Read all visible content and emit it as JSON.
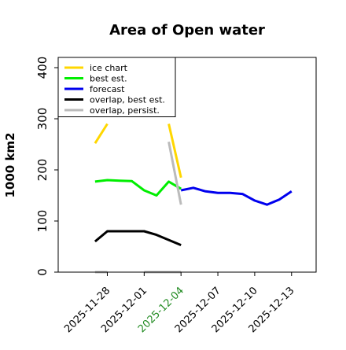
{
  "chart_data": {
    "type": "line",
    "title": "Area of Open water",
    "xlabel": "",
    "ylabel": "1000 km2",
    "ylim": [
      0,
      420
    ],
    "xlim": [
      "2025-11-24",
      "2025-12-15"
    ],
    "y_ticks": [
      0,
      100,
      200,
      300,
      400
    ],
    "x_ticks": [
      {
        "date": "2025-11-28",
        "label": "2025-11-28",
        "color": "#000000"
      },
      {
        "date": "2025-12-01",
        "label": "2025-12-01",
        "color": "#000000"
      },
      {
        "date": "2025-12-04",
        "label": "2025-12-04",
        "color": "#228b22"
      },
      {
        "date": "2025-12-07",
        "label": "2025-12-07",
        "color": "#000000"
      },
      {
        "date": "2025-12-10",
        "label": "2025-12-10",
        "color": "#000000"
      },
      {
        "date": "2025-12-13",
        "label": "2025-12-13",
        "color": "#000000"
      }
    ],
    "legend_position": "top-left",
    "grid": false,
    "series": [
      {
        "name": "ice chart",
        "color": "#ffd700",
        "width": 3,
        "segments": [
          {
            "x": [
              "2025-11-27",
              "2025-11-28"
            ],
            "y": [
              252,
              290
            ]
          },
          {
            "x": [
              "2025-12-03",
              "2025-12-04"
            ],
            "y": [
              290,
              185
            ]
          }
        ]
      },
      {
        "name": "best est.",
        "color": "#00ee00",
        "width": 3,
        "segments": [
          {
            "x": [
              "2025-11-27",
              "2025-11-28",
              "2025-11-29",
              "2025-11-30",
              "2025-12-01",
              "2025-12-02",
              "2025-12-03",
              "2025-12-04"
            ],
            "y": [
              177,
              180,
              179,
              178,
              160,
              150,
              177,
              163
            ]
          }
        ]
      },
      {
        "name": "forecast",
        "color": "#0000ee",
        "width": 3,
        "segments": [
          {
            "x": [
              "2025-12-04",
              "2025-12-05",
              "2025-12-06",
              "2025-12-07",
              "2025-12-08",
              "2025-12-09",
              "2025-12-10",
              "2025-12-11",
              "2025-12-12",
              "2025-12-13"
            ],
            "y": [
              160,
              165,
              158,
              155,
              155,
              153,
              140,
              132,
              142,
              158
            ]
          }
        ]
      },
      {
        "name": "overlap, best est.",
        "color": "#000000",
        "width": 3,
        "segments": [
          {
            "x": [
              "2025-11-27",
              "2025-11-28",
              "2025-11-29",
              "2025-11-30",
              "2025-12-01",
              "2025-12-02",
              "2025-12-03",
              "2025-12-04"
            ],
            "y": [
              60,
              80,
              80,
              80,
              80,
              73,
              63,
              53
            ]
          }
        ]
      },
      {
        "name": "overlap, persist.",
        "color": "#bbbbbb",
        "width": 3,
        "segments": [
          {
            "x": [
              "2025-12-03",
              "2025-12-04"
            ],
            "y": [
              255,
              132
            ]
          },
          {
            "x": [
              "2025-11-27",
              "2025-11-28"
            ],
            "y": [
              0,
              0
            ]
          },
          {
            "x": [
              "2025-12-01",
              "2025-12-02",
              "2025-12-03",
              "2025-12-04"
            ],
            "y": [
              0,
              0,
              0,
              0
            ]
          }
        ]
      }
    ]
  }
}
